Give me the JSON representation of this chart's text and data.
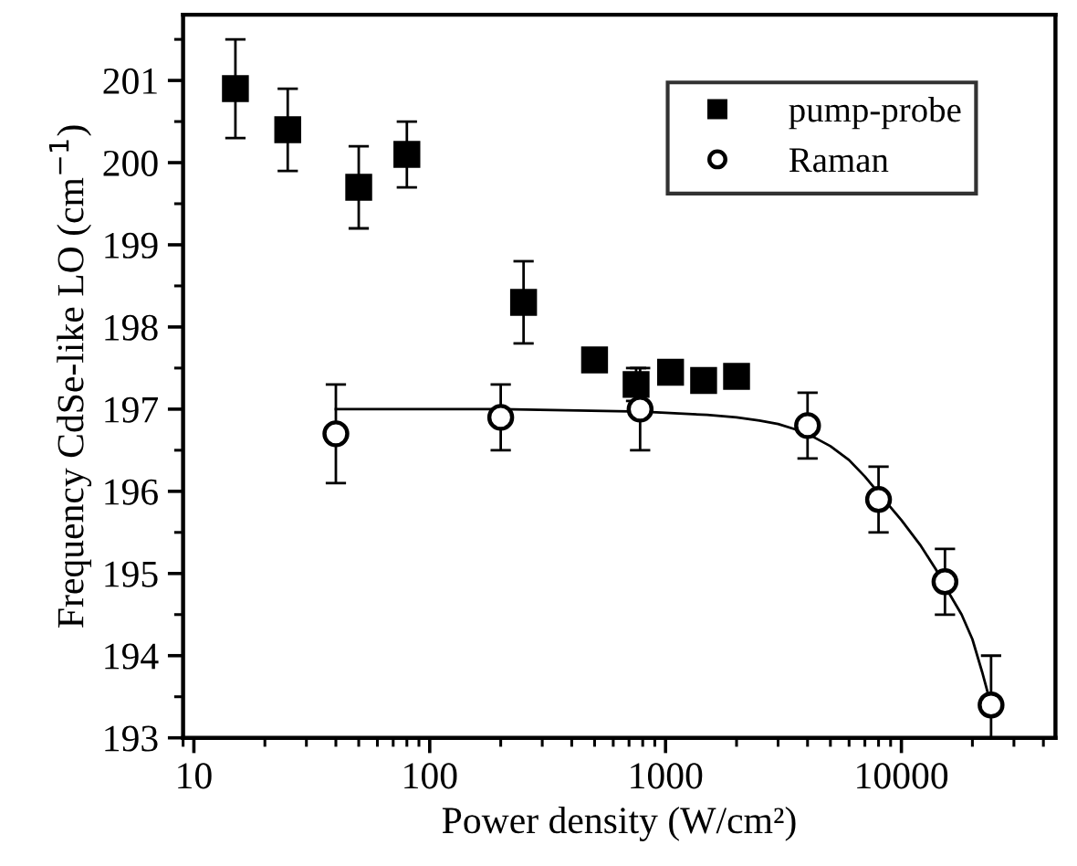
{
  "chart_data": {
    "type": "scatter",
    "xlabel": "Power density (W/cm²)",
    "ylabel": "Frequency CdSe-like LO (cm$^{−1}$)",
    "log": "x",
    "xlim": [
      9,
      45000
    ],
    "xticks": [
      10,
      100,
      1000,
      10000
    ],
    "ylim": [
      193,
      201.8
    ],
    "yticks": [
      193,
      194,
      195,
      196,
      197,
      198,
      199,
      200,
      201
    ],
    "legend": "top right",
    "grid": false,
    "series": [
      {
        "name": "pump-probe",
        "marker": "square",
        "color": "#000000",
        "x": [
          15,
          25,
          50,
          80,
          250,
          500,
          750,
          1050,
          1450,
          2000
        ],
        "values": [
          200.9,
          200.4,
          199.7,
          200.1,
          198.3,
          197.6,
          197.3,
          197.45,
          197.35,
          197.4
        ],
        "errors": [
          0.6,
          0.5,
          0.5,
          0.4,
          0.5,
          null,
          0.2,
          null,
          null,
          null
        ]
      },
      {
        "name": "Raman",
        "marker": "circle",
        "color": "#000000",
        "x": [
          40,
          200,
          780,
          4000,
          8000,
          15300,
          24000
        ],
        "values": [
          196.7,
          196.9,
          197.0,
          196.8,
          195.9,
          194.9,
          193.4
        ],
        "errors": [
          0.6,
          0.4,
          0.5,
          0.4,
          0.4,
          0.4,
          [
            193.0,
            194.0
          ]
        ]
      },
      {
        "type": "line",
        "marker": "none",
        "color": "#000000",
        "x": [
          40,
          200,
          800,
          1500,
          2000,
          2500,
          3000,
          3500,
          4000,
          5000,
          6000,
          7000,
          8000,
          10000,
          12000,
          14000,
          16000,
          18000,
          20000,
          22000,
          24000
        ],
        "values": [
          197.0,
          197.0,
          196.97,
          196.93,
          196.9,
          196.86,
          196.82,
          196.76,
          196.7,
          196.55,
          196.38,
          196.18,
          195.98,
          195.65,
          195.35,
          195.05,
          194.75,
          194.5,
          194.2,
          193.8,
          193.4
        ]
      }
    ]
  }
}
